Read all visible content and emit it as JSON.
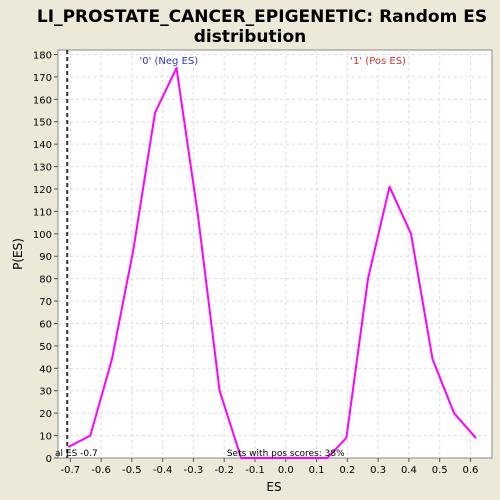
{
  "chart_data": {
    "type": "line",
    "title": "LI_PROSTATE_CANCER_EPIGENETIC: Random ES distribution",
    "title_lines": [
      "LI_PROSTATE_CANCER_EPIGENETIC: Random ES",
      "distribution"
    ],
    "xlabel": "ES",
    "ylabel": "P(ES)",
    "xlim": [
      -0.74,
      0.67
    ],
    "ylim": [
      0,
      182
    ],
    "grid": true,
    "x_ticks": [
      -0.7,
      -0.6,
      -0.5,
      -0.4,
      -0.3,
      -0.2,
      -0.1,
      0.0,
      0.1,
      0.2,
      0.3,
      0.4,
      0.5,
      0.6
    ],
    "x_tick_labels": [
      "-0.7",
      "-0.6",
      "-0.5",
      "-0.4",
      "-0.3",
      "-0.2",
      "-0.1",
      "0.0",
      "0.1",
      "0.2",
      "0.3",
      "0.4",
      "0.5",
      "0.6"
    ],
    "y_ticks": [
      0,
      10,
      20,
      30,
      40,
      50,
      60,
      70,
      80,
      90,
      100,
      110,
      120,
      130,
      140,
      150,
      160,
      170,
      180
    ],
    "y_tick_labels": [
      "0",
      "10",
      "20",
      "30",
      "40",
      "50",
      "60",
      "70",
      "80",
      "90",
      "100",
      "110",
      "120",
      "130",
      "140",
      "150",
      "160",
      "170",
      "180"
    ],
    "series": [
      {
        "color": "#ff00ff",
        "x": [
          -0.705,
          -0.635,
          -0.565,
          -0.495,
          -0.425,
          -0.355,
          -0.285,
          -0.215,
          -0.145,
          -0.075,
          -0.005,
          0.065,
          0.135,
          0.197,
          0.267,
          0.337,
          0.407,
          0.477,
          0.547,
          0.617
        ],
        "y": [
          5,
          10,
          44,
          93,
          154,
          174,
          108,
          30,
          0,
          0,
          0,
          0,
          0,
          9,
          80,
          121,
          100,
          44,
          20,
          9
        ]
      }
    ],
    "vline": {
      "x": -0.71,
      "style": "dashed",
      "color": "#333333"
    },
    "annotations": {
      "neg_label": {
        "text": "'0' (Neg ES)",
        "color": "#3333cc",
        "x": -0.38
      },
      "pos_label": {
        "text": "'1' (Pos ES)",
        "color": "#cc3333",
        "x": 0.3
      },
      "actual_es": "al ES -0.7",
      "pos_scores": "Sets with pos scores: 38%"
    }
  },
  "colors": {
    "background": "#ece9d8",
    "plot_background": "#ffffff",
    "grid": "#dddddd",
    "axis": "#888888"
  }
}
